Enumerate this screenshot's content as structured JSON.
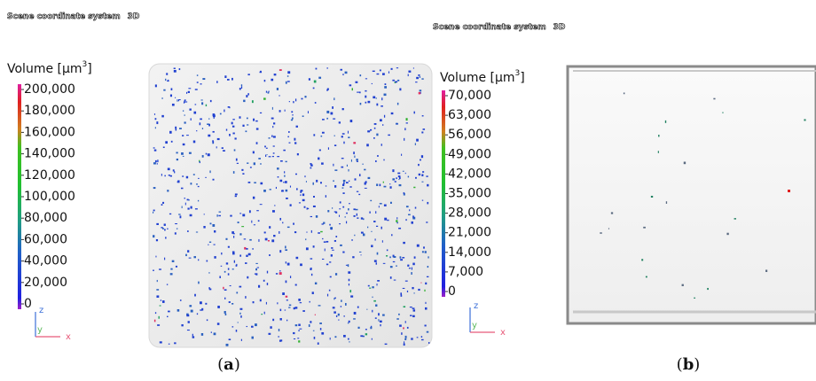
{
  "panels": [
    {
      "header": "Scene coordinate system",
      "header_mode": "3D",
      "legend_title": "Volume [µm",
      "legend_title_sup": "3",
      "legend_title_end": "]",
      "scale_ticks": [
        {
          "value": 0,
          "label": "0"
        },
        {
          "value": 20000,
          "label": "20,000"
        },
        {
          "value": 40000,
          "label": "40,000"
        },
        {
          "value": 60000,
          "label": "60,000"
        },
        {
          "value": 80000,
          "label": "80,000"
        },
        {
          "value": 100000,
          "label": "100,000"
        },
        {
          "value": 120000,
          "label": "120,000"
        },
        {
          "value": 140000,
          "label": "140,000"
        },
        {
          "value": 160000,
          "label": "160,000"
        },
        {
          "value": 180000,
          "label": "180,000"
        },
        {
          "value": 200000,
          "label": "200,000"
        }
      ],
      "axis_z": "z",
      "axis_x": "x",
      "axis_y": "y",
      "caption_open": "(",
      "caption_letter": "a",
      "caption_close": ")"
    },
    {
      "header": "Scene coordinate system",
      "header_mode": "3D",
      "legend_title": "Volume [µm",
      "legend_title_sup": "3",
      "legend_title_end": "]",
      "scale_ticks": [
        {
          "value": 0,
          "label": "0"
        },
        {
          "value": 7000,
          "label": "7,000"
        },
        {
          "value": 14000,
          "label": "14,000"
        },
        {
          "value": 21000,
          "label": "21,000"
        },
        {
          "value": 28000,
          "label": "28,000"
        },
        {
          "value": 35000,
          "label": "35,000"
        },
        {
          "value": 42000,
          "label": "42,000"
        },
        {
          "value": 49000,
          "label": "49,000"
        },
        {
          "value": 56000,
          "label": "56,000"
        },
        {
          "value": 63000,
          "label": "63,000"
        },
        {
          "value": 70000,
          "label": "70,000"
        }
      ],
      "axis_z": "z",
      "axis_x": "x",
      "axis_y": "y",
      "caption_open": "(",
      "caption_letter": "b",
      "caption_close": ")"
    }
  ]
}
